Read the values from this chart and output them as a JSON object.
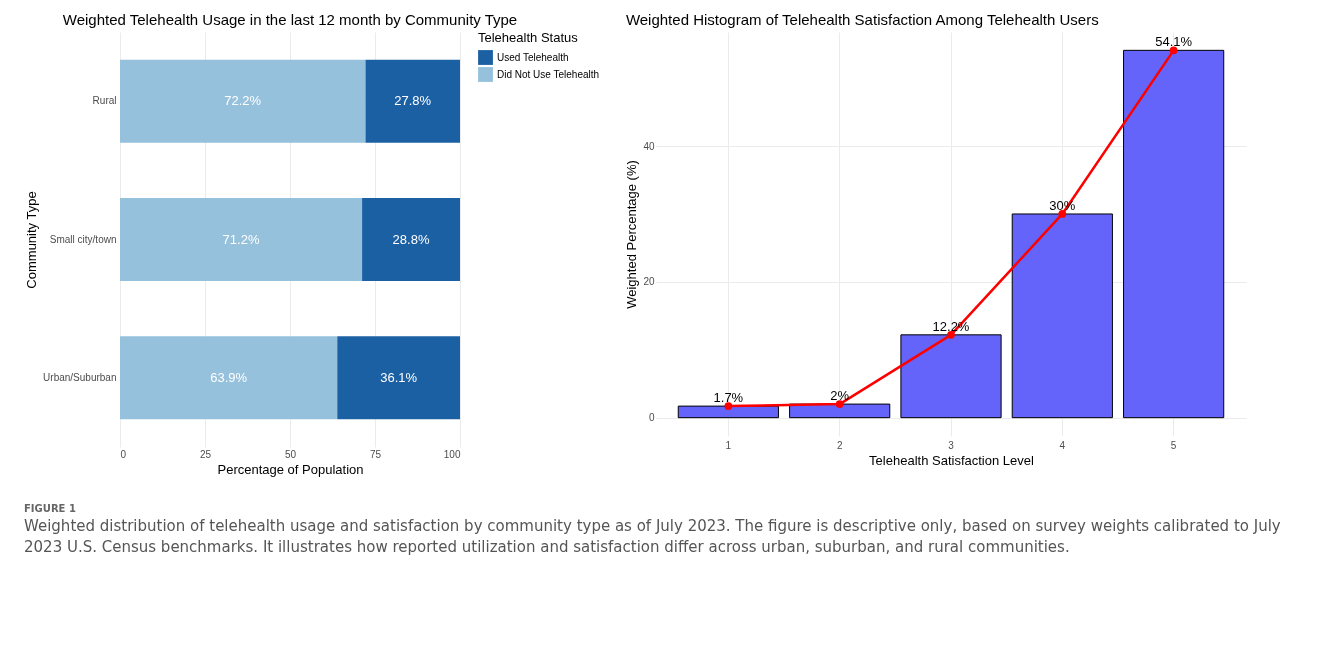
{
  "chart_data": [
    {
      "type": "bar",
      "orientation": "horizontal",
      "stacked": true,
      "title": "Weighted Telehealth Usage in the last 12 month by Community Type",
      "xlabel": "Percentage of Population",
      "ylabel": "Community Type",
      "legend_title": "Telehealth Status",
      "legend": "right",
      "grid": true,
      "categories": [
        "Rural",
        "Small city/town",
        "Urban/Suburban"
      ],
      "series": [
        {
          "name": "Did Not Use Telehealth",
          "color": "#96c1dc",
          "values": [
            72.2,
            71.2,
            63.9
          ],
          "value_labels": [
            "72.2%",
            "71.2%",
            "63.9%"
          ]
        },
        {
          "name": "Used Telehealth",
          "color": "#1c60a4",
          "values": [
            27.8,
            28.8,
            36.1
          ],
          "value_labels": [
            "27.8%",
            "28.8%",
            "36.1%"
          ]
        }
      ],
      "xlim": [
        0,
        100
      ],
      "xticks": [
        0,
        25,
        50,
        75,
        100
      ],
      "annotations": [
        "FIGURE 1",
        "Weighted distribution of telehealth usage and satisfaction by community type as of July 2023. The figure is descriptive only, based on survey weights calibrated to July 2023 U.S. Census benchmarks. It illustrates how reported utilization and satisfaction differ across urban, suburban, and rural communities."
      ]
    },
    {
      "type": "bar",
      "title": "Weighted Histogram of Telehealth Satisfaction Among Telehealth Users",
      "xlabel": "Telehealth Satisfaction Level",
      "ylabel": "Weighted Percentage (%)",
      "grid": true,
      "categories": [
        "1",
        "2",
        "3",
        "4",
        "5"
      ],
      "series": [
        {
          "color": "#6464fb",
          "values": [
            1.7,
            2,
            12.2,
            30,
            54.1
          ],
          "value_labels": [
            "1.7%",
            "2%",
            "12.2%",
            "30%",
            "54.1%"
          ]
        },
        {
          "type": "line",
          "color": "#ff0000",
          "marker": "circle",
          "values": [
            1.7,
            2,
            12.2,
            30,
            54.1
          ]
        }
      ],
      "ylim": [
        -2.7,
        56.8
      ],
      "yticks": [
        0,
        20,
        40
      ]
    }
  ]
}
